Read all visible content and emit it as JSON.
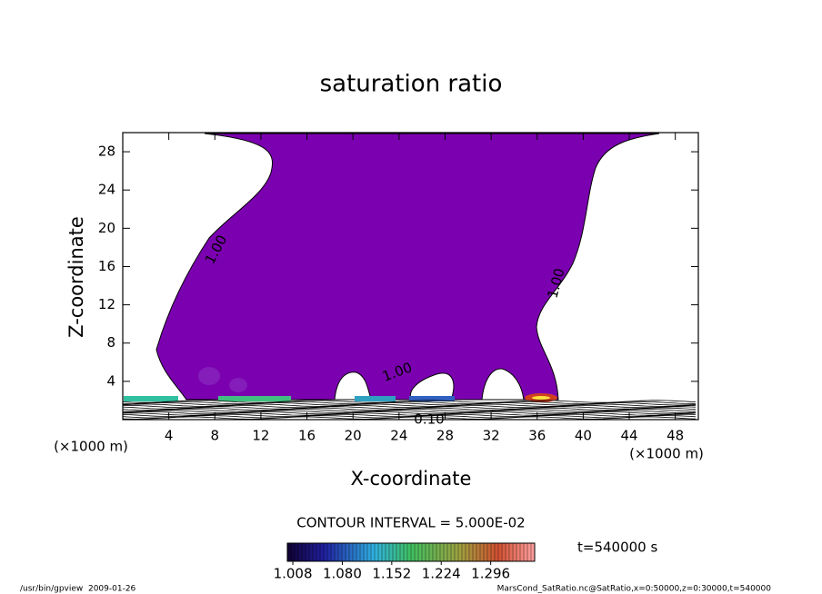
{
  "chart_data": {
    "type": "contour",
    "title": "saturation ratio",
    "x_label": "X-coordinate",
    "y_label": "Z-coordinate",
    "y_unit_label": "(×1000 m)",
    "x_unit_label": "(×1000 m)",
    "xlim": [
      0,
      50
    ],
    "ylim": [
      0,
      30
    ],
    "xticks": [
      4,
      8,
      12,
      16,
      20,
      24,
      28,
      32,
      36,
      40,
      44,
      48
    ],
    "yticks": [
      4,
      8,
      12,
      16,
      20,
      24,
      28
    ],
    "fill_color": "#7b00b0",
    "contour_labels": [
      "1.00",
      "1.00",
      "1.00",
      "0.10"
    ],
    "contour_interval_label": "CONTOUR INTERVAL = 5.000E-02",
    "colorbar": {
      "clim": [
        1.0,
        1.36
      ],
      "ticks": [
        1.008,
        {
          "value": 1.08,
          "label": "1.080"
        },
        1.152,
        1.224,
        1.296
      ]
    },
    "time_label": "t=540000 s"
  },
  "footer": {
    "left": "/usr/bin/gpview  2009-01-26",
    "right": "MarsCond_SatRatio.nc@SatRatio,x=0:50000,z=0:30000,t=540000"
  }
}
